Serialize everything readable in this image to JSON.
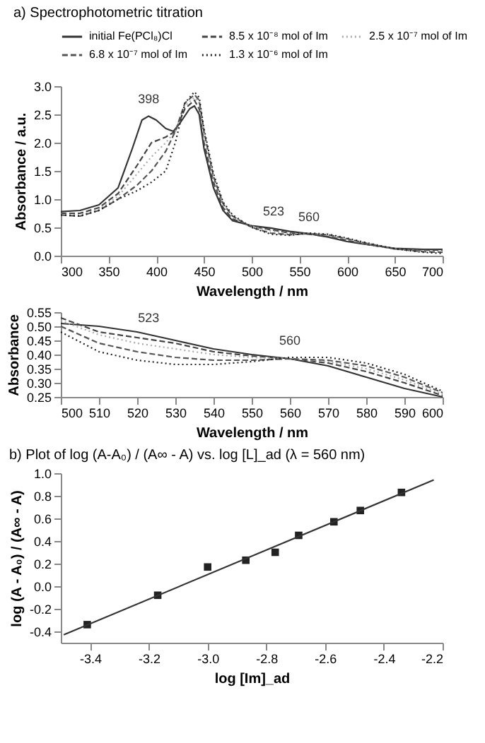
{
  "chart_data": [
    {
      "type": "line",
      "title": "a) Spectrophotometric titration",
      "xlabel": "Wavelength / nm",
      "ylabel": "Absorbance / a.u.",
      "legend": "top",
      "grid": false,
      "xlim": [
        300,
        700
      ],
      "xticks": [
        300,
        350,
        400,
        450,
        500,
        550,
        600,
        650,
        700
      ],
      "ylim": [
        0,
        3.0
      ],
      "yticks": [
        {
          "value": 0,
          "label": "0.0"
        },
        0.5,
        {
          "value": 1,
          "label": "1.0"
        },
        1.5,
        {
          "value": 2,
          "label": "2.0"
        },
        2.5,
        {
          "value": 3,
          "label": "3.0"
        }
      ],
      "series": [
        {
          "name": "initial  Fe(PCl₈)Cl",
          "color": "#333333",
          "line_style": "solid",
          "x": [
            300,
            320,
            340,
            360,
            375,
            385,
            392,
            400,
            410,
            418,
            425,
            435,
            440,
            445,
            450,
            460,
            470,
            480,
            500,
            520,
            540,
            560,
            580,
            600,
            620,
            650,
            680,
            700
          ],
          "values": [
            0.78,
            0.8,
            0.9,
            1.2,
            1.9,
            2.4,
            2.47,
            2.4,
            2.25,
            2.2,
            2.35,
            2.6,
            2.65,
            2.5,
            1.9,
            1.2,
            0.8,
            0.62,
            0.53,
            0.49,
            0.43,
            0.39,
            0.33,
            0.25,
            0.2,
            0.13,
            0.11,
            0.11
          ]
        },
        {
          "name": "8.5 x 10⁻⁸ mol of Im",
          "color": "#444444",
          "line_style": "dashed",
          "x": [
            300,
            320,
            340,
            360,
            380,
            395,
            410,
            420,
            430,
            440,
            445,
            450,
            460,
            470,
            480,
            500,
            520,
            540,
            560,
            580,
            600,
            620,
            650,
            680,
            700
          ],
          "values": [
            0.75,
            0.75,
            0.85,
            1.1,
            1.6,
            2.0,
            2.1,
            2.2,
            2.6,
            2.75,
            2.6,
            2.0,
            1.3,
            0.85,
            0.65,
            0.52,
            0.46,
            0.4,
            0.38,
            0.34,
            0.27,
            0.2,
            0.12,
            0.1,
            0.1
          ]
        },
        {
          "name": "2.5 x 10⁻⁷ mol of Im",
          "color": "#aaaaaa",
          "line_style": "dotted",
          "x": [
            300,
            320,
            340,
            360,
            380,
            395,
            410,
            420,
            430,
            440,
            445,
            450,
            460,
            470,
            480,
            500,
            520,
            540,
            560,
            580,
            600,
            620,
            650,
            680,
            700
          ],
          "values": [
            0.73,
            0.72,
            0.82,
            1.05,
            1.45,
            1.75,
            2.0,
            2.2,
            2.65,
            2.8,
            2.7,
            2.1,
            1.35,
            0.9,
            0.68,
            0.52,
            0.44,
            0.39,
            0.39,
            0.36,
            0.29,
            0.21,
            0.12,
            0.08,
            0.07
          ]
        },
        {
          "name": "6.8 x 10⁻⁷ mol of Im",
          "color": "#555555",
          "line_style": "dashed",
          "x": [
            300,
            320,
            340,
            360,
            380,
            395,
            410,
            420,
            430,
            440,
            445,
            450,
            460,
            470,
            480,
            500,
            520,
            540,
            560,
            580,
            600,
            620,
            650,
            680,
            700
          ],
          "values": [
            0.72,
            0.7,
            0.8,
            1.0,
            1.25,
            1.5,
            1.85,
            2.2,
            2.7,
            2.85,
            2.75,
            2.2,
            1.4,
            0.92,
            0.7,
            0.5,
            0.4,
            0.37,
            0.39,
            0.37,
            0.3,
            0.22,
            0.12,
            0.07,
            0.06
          ]
        },
        {
          "name": "1.3 x 10⁻⁶ mol of Im",
          "color": "#222222",
          "line_style": "dotted",
          "x": [
            300,
            320,
            340,
            360,
            380,
            395,
            410,
            420,
            430,
            440,
            445,
            450,
            460,
            470,
            480,
            500,
            520,
            540,
            560,
            580,
            600,
            620,
            650,
            680,
            700
          ],
          "values": [
            0.72,
            0.7,
            0.8,
            1.0,
            1.15,
            1.3,
            1.5,
            2.0,
            2.7,
            2.9,
            2.8,
            2.25,
            1.45,
            0.95,
            0.72,
            0.5,
            0.38,
            0.36,
            0.4,
            0.38,
            0.31,
            0.23,
            0.12,
            0.06,
            0.04
          ]
        }
      ],
      "annotations": [
        {
          "text": "398",
          "x": 392,
          "y": 2.47
        },
        {
          "text": "523",
          "x": 523,
          "y": 0.49
        },
        {
          "text": "560",
          "x": 560,
          "y": 0.39
        }
      ]
    },
    {
      "type": "line",
      "xlabel": "Wavelength / nm",
      "ylabel": "Absorbance",
      "grid": false,
      "xlim": [
        500,
        600
      ],
      "xticks": [
        500,
        510,
        520,
        530,
        540,
        550,
        560,
        570,
        580,
        590,
        600
      ],
      "ylim": [
        0.25,
        0.55
      ],
      "yticks": [
        0.25,
        {
          "value": 0.3,
          "label": "0.30"
        },
        0.35,
        {
          "value": 0.4,
          "label": "0.40"
        },
        0.45,
        {
          "value": 0.5,
          "label": "0.50"
        },
        0.55
      ],
      "x": [
        500,
        510,
        520,
        530,
        540,
        550,
        560,
        570,
        580,
        590,
        600
      ],
      "series": [
        {
          "color": "#333333",
          "line_style": "solid",
          "values": [
            0.51,
            0.5,
            0.48,
            0.45,
            0.42,
            0.4,
            0.385,
            0.36,
            0.32,
            0.28,
            0.25
          ]
        },
        {
          "color": "#444444",
          "line_style": "dashed",
          "values": [
            0.53,
            0.48,
            0.46,
            0.44,
            0.41,
            0.395,
            0.385,
            0.37,
            0.34,
            0.3,
            0.255
          ]
        },
        {
          "color": "#aaaaaa",
          "line_style": "dotted",
          "values": [
            0.52,
            0.47,
            0.44,
            0.42,
            0.4,
            0.39,
            0.385,
            0.375,
            0.35,
            0.31,
            0.26
          ]
        },
        {
          "color": "#555555",
          "line_style": "dashed",
          "values": [
            0.5,
            0.44,
            0.41,
            0.39,
            0.38,
            0.38,
            0.385,
            0.38,
            0.36,
            0.32,
            0.265
          ]
        },
        {
          "color": "#222222",
          "line_style": "dotted",
          "values": [
            0.48,
            0.41,
            0.38,
            0.365,
            0.365,
            0.375,
            0.39,
            0.39,
            0.37,
            0.33,
            0.27
          ]
        }
      ],
      "annotations": [
        {
          "text": "523",
          "x": 523,
          "y": 0.47
        },
        {
          "text": "560",
          "x": 560,
          "y": 0.39
        }
      ]
    },
    {
      "type": "scatter",
      "title": "b) Plot of log (A-A₀) / (A∞ - A) vs. log [L]_ad  (λ = 560 nm)",
      "xlabel": "log [Im]_ad",
      "ylabel": "log (A - A₀) / (A∞ - A)",
      "grid": false,
      "xlim": [
        -3.5,
        -2.2
      ],
      "xticks": [
        -3.4,
        -3.2,
        {
          "value": -3,
          "label": "-3.0"
        },
        -2.8,
        -2.6,
        -2.4,
        -2.2
      ],
      "ylim": [
        -0.5,
        1.0
      ],
      "yticks": [
        -0.4,
        -0.2,
        {
          "value": 0,
          "label": "0.0"
        },
        0.2,
        0.4,
        0.6,
        0.8,
        {
          "value": 1,
          "label": "1.0"
        }
      ],
      "series": [
        {
          "type": "scatter",
          "marker": "square",
          "color": "#222222",
          "x": [
            -3.41,
            -3.17,
            -3.0,
            -2.87,
            -2.77,
            -2.69,
            -2.57,
            -2.48,
            -2.34
          ],
          "values": [
            -0.34,
            -0.08,
            0.17,
            0.23,
            0.3,
            0.45,
            0.57,
            0.67,
            0.83
          ]
        },
        {
          "type": "line",
          "color": "#333333",
          "line_style": "solid",
          "x": [
            -3.49,
            -2.23
          ],
          "values": [
            -0.43,
            0.94
          ]
        }
      ]
    }
  ]
}
